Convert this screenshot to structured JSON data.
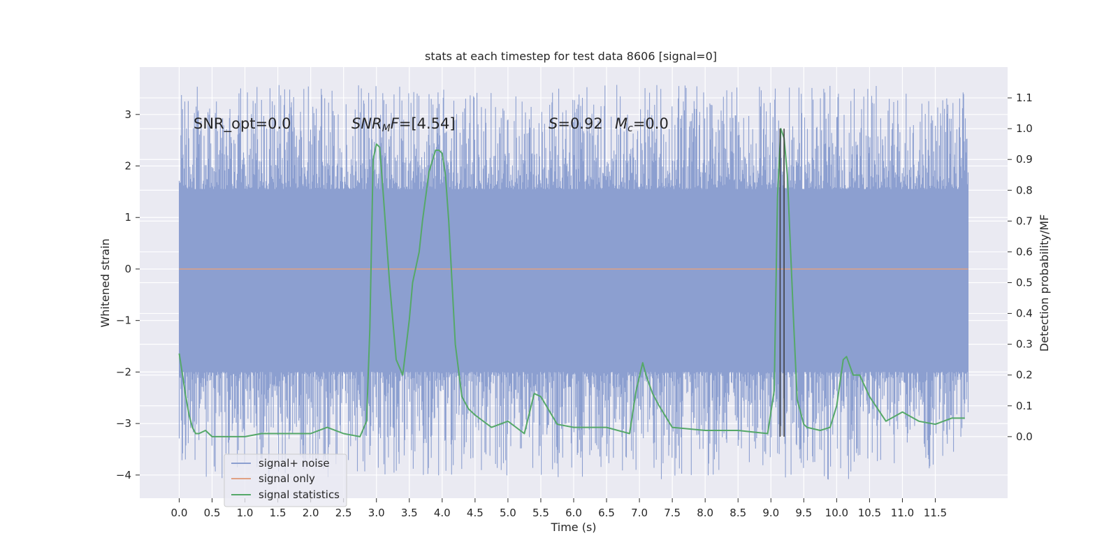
{
  "chart_data": {
    "type": "line",
    "title": "stats at each timestep for test data 8606 [signal=0]",
    "xlabel": "Time (s)",
    "ylabel": "Whitened strain",
    "ylabel_right": "Detection probability/MF",
    "xlim": [
      -0.6,
      12.6
    ],
    "ylim": [
      -4.45,
      3.92
    ],
    "ylim_right": [
      -0.2,
      1.2
    ],
    "grid": true,
    "x_ticks": [
      "0.0",
      "0.5",
      "1.0",
      "1.5",
      "2.0",
      "2.5",
      "3.0",
      "3.5",
      "4.0",
      "4.5",
      "5.0",
      "5.5",
      "6.0",
      "6.5",
      "7.0",
      "7.5",
      "8.0",
      "8.5",
      "9.0",
      "9.5",
      "10.0",
      "10.5",
      "11.0",
      "11.5"
    ],
    "y_ticks": [
      "−4",
      "−3",
      "−2",
      "−1",
      "0",
      "1",
      "2",
      "3"
    ],
    "y_ticks_right": [
      "0.0",
      "0.1",
      "0.2",
      "0.3",
      "0.4",
      "0.5",
      "0.6",
      "0.7",
      "0.8",
      "0.9",
      "1.0",
      "1.1"
    ],
    "annotations": {
      "snr_opt": "SNR_opt=0.0",
      "snr_mf_italic": "SNR",
      "snr_mf_sub": "M",
      "snr_mf_rest": "F=[4.54]",
      "s_italic": "S",
      "s_rest": "=0.92",
      "mc_italic": "M",
      "mc_sub": "c",
      "mc_rest": "=0.0"
    },
    "legend": {
      "placement": "lower-left",
      "entries": [
        "signal+ noise",
        "signal only",
        "signal statistics"
      ]
    },
    "colors": {
      "signal_noise": "#8c9fd0",
      "signal_only": "#e0a183",
      "signal_stats": "#55a868",
      "vlines": "#3a3a3a",
      "background": "#eaeaf2",
      "grid": "#ffffff"
    },
    "series": [
      {
        "name": "signal+ noise",
        "axis": "left",
        "band": {
          "x_start": 0.0,
          "x_end": 12.0,
          "core_low": -2.0,
          "core_high": 1.55,
          "spike_max": 3.58,
          "spike_min": -4.1
        }
      },
      {
        "name": "signal only",
        "axis": "left",
        "x": [
          0.0,
          12.0
        ],
        "y": [
          0.0,
          0.0
        ]
      },
      {
        "name": "signal statistics",
        "axis": "right",
        "x": [
          0.0,
          0.05,
          0.1,
          0.15,
          0.2,
          0.25,
          0.3,
          0.4,
          0.5,
          0.75,
          1.0,
          1.25,
          1.5,
          1.75,
          2.0,
          2.25,
          2.5,
          2.75,
          2.85,
          2.9,
          2.95,
          3.0,
          3.05,
          3.1,
          3.2,
          3.3,
          3.4,
          3.5,
          3.55,
          3.6,
          3.65,
          3.7,
          3.8,
          3.9,
          3.95,
          4.0,
          4.05,
          4.1,
          4.15,
          4.2,
          4.3,
          4.4,
          4.5,
          4.75,
          5.0,
          5.25,
          5.4,
          5.5,
          5.75,
          6.0,
          6.5,
          6.85,
          6.95,
          7.05,
          7.1,
          7.2,
          7.3,
          7.5,
          8.0,
          8.5,
          8.95,
          9.05,
          9.1,
          9.15,
          9.2,
          9.25,
          9.3,
          9.35,
          9.4,
          9.5,
          9.55,
          9.75,
          9.9,
          10.0,
          10.1,
          10.15,
          10.25,
          10.35,
          10.5,
          10.75,
          11.0,
          11.25,
          11.5,
          11.75,
          11.95
        ],
        "y": [
          0.27,
          0.2,
          0.13,
          0.07,
          0.03,
          0.01,
          0.01,
          0.02,
          0.0,
          0.0,
          0.0,
          0.01,
          0.01,
          0.01,
          0.01,
          0.03,
          0.01,
          0.0,
          0.05,
          0.35,
          0.9,
          0.95,
          0.94,
          0.8,
          0.5,
          0.25,
          0.2,
          0.38,
          0.5,
          0.55,
          0.6,
          0.7,
          0.86,
          0.93,
          0.93,
          0.92,
          0.85,
          0.7,
          0.5,
          0.3,
          0.13,
          0.09,
          0.07,
          0.03,
          0.05,
          0.01,
          0.14,
          0.13,
          0.04,
          0.03,
          0.03,
          0.01,
          0.15,
          0.24,
          0.2,
          0.14,
          0.1,
          0.03,
          0.02,
          0.02,
          0.01,
          0.15,
          0.78,
          1.0,
          0.97,
          0.85,
          0.6,
          0.35,
          0.12,
          0.04,
          0.03,
          0.02,
          0.03,
          0.1,
          0.25,
          0.26,
          0.2,
          0.2,
          0.13,
          0.05,
          0.08,
          0.05,
          0.04,
          0.06,
          0.06
        ]
      }
    ],
    "vlines": {
      "axis": "right",
      "x": [
        9.14,
        9.2
      ],
      "y_range": [
        0.0,
        1.0
      ]
    }
  }
}
